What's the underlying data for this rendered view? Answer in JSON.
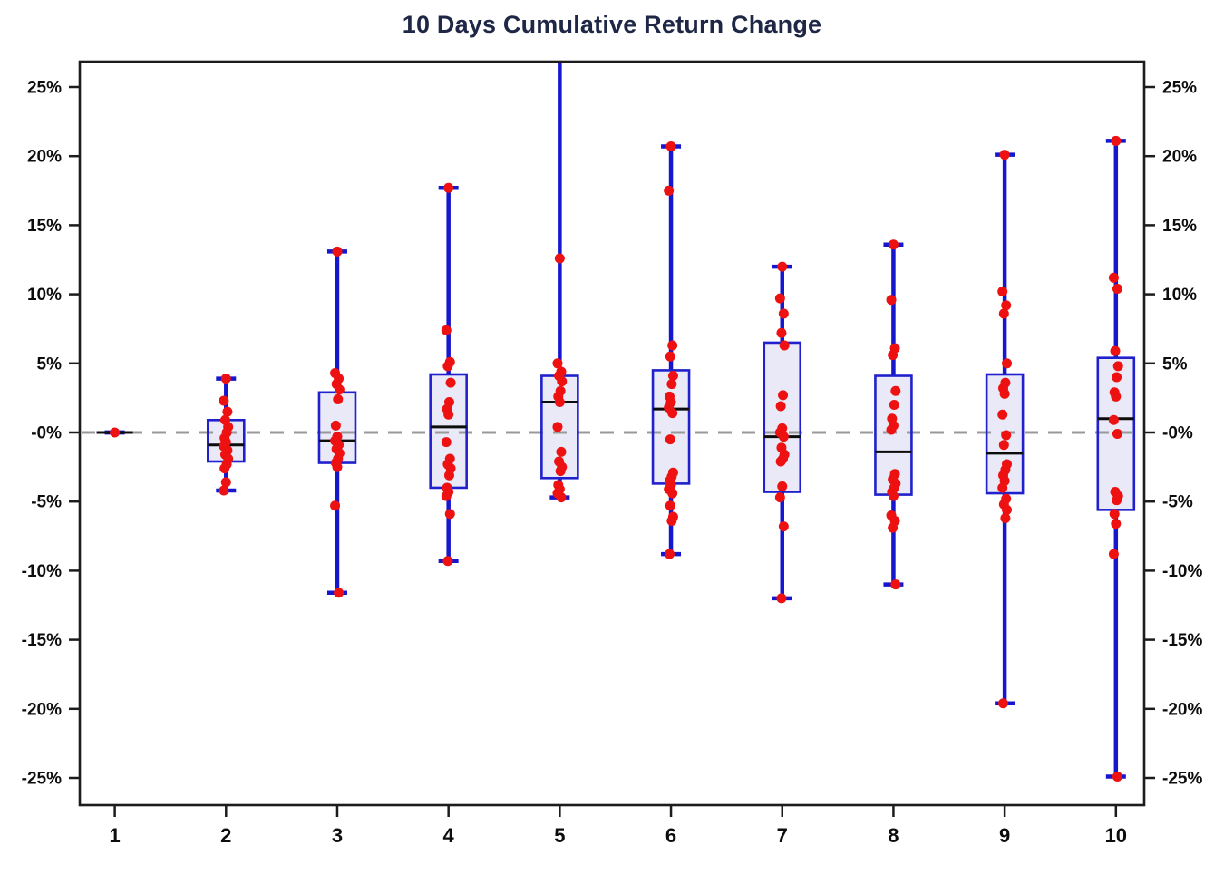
{
  "title": "10 Days Cumulative Return Change",
  "colors": {
    "title_text": "#1f2747",
    "axis": "#1c1c1c",
    "tick_text": "#0d0d0d",
    "box_fill": "#e9e9f8",
    "box_stroke": "#2021cd",
    "whisker": "#1616cf",
    "median": "#0c0c0c",
    "point": "#ee1111",
    "zero_line": "#999999"
  },
  "chart_data": {
    "type": "boxplot-with-points",
    "title": "10 Days Cumulative Return Change",
    "xlabel": "",
    "ylabel": "",
    "categories": [
      "1",
      "2",
      "3",
      "4",
      "5",
      "6",
      "7",
      "8",
      "9",
      "10"
    ],
    "y_tick_labels": [
      "25%",
      "20%",
      "15%",
      "10%",
      "5%",
      "-0%",
      "-5%",
      "-10%",
      "-15%",
      "-20%",
      "-25%"
    ],
    "y_tick_values": [
      25,
      20,
      15,
      10,
      5,
      0,
      -5,
      -10,
      -15,
      -20,
      -25
    ],
    "ylim": [
      -26.8,
      26.8
    ],
    "y_axis_mirrored_right": true,
    "grid": false,
    "zero_reference_line": 0,
    "series": [
      {
        "day": "1",
        "whisker_low": 0.0,
        "q1": 0.0,
        "median": 0.0,
        "q3": 0.0,
        "whisker_high": 0.0,
        "clipped_top": false,
        "points": [
          0.0
        ]
      },
      {
        "day": "2",
        "whisker_low": -4.2,
        "q1": -2.1,
        "median": -0.9,
        "q3": 0.9,
        "whisker_high": 3.9,
        "clipped_top": false,
        "points": [
          3.9,
          2.3,
          1.5,
          0.9,
          0.4,
          0.0,
          -0.4,
          -0.7,
          -1.0,
          -1.3,
          -1.6,
          -1.9,
          -2.3,
          -2.6,
          -3.6,
          -4.2
        ]
      },
      {
        "day": "3",
        "whisker_low": -11.6,
        "q1": -2.2,
        "median": -0.6,
        "q3": 2.9,
        "whisker_high": 13.1,
        "clipped_top": false,
        "points": [
          13.1,
          4.3,
          3.9,
          3.5,
          3.1,
          2.4,
          0.5,
          -0.3,
          -0.6,
          -0.9,
          -1.2,
          -1.5,
          -1.9,
          -2.2,
          -2.5,
          -5.3,
          -11.6
        ]
      },
      {
        "day": "4",
        "whisker_low": -9.3,
        "q1": -4.0,
        "median": 0.4,
        "q3": 4.2,
        "whisker_high": 17.7,
        "clipped_top": false,
        "points": [
          17.7,
          7.4,
          5.1,
          4.8,
          3.6,
          2.2,
          1.7,
          1.3,
          -0.7,
          -1.9,
          -2.3,
          -2.6,
          -3.1,
          -4.0,
          -4.3,
          -4.6,
          -5.9,
          -9.3
        ]
      },
      {
        "day": "5",
        "whisker_low": -4.7,
        "q1": -3.3,
        "median": 2.2,
        "q3": 4.1,
        "whisker_high": 29.0,
        "clipped_top": true,
        "points": [
          12.6,
          5.0,
          4.4,
          4.1,
          3.7,
          3.0,
          2.6,
          2.2,
          0.4,
          -1.4,
          -2.1,
          -2.5,
          -2.8,
          -3.8,
          -4.1,
          -4.4,
          -4.7
        ]
      },
      {
        "day": "6",
        "whisker_low": -8.8,
        "q1": -3.7,
        "median": 1.7,
        "q3": 4.5,
        "whisker_high": 20.7,
        "clipped_top": false,
        "points": [
          20.7,
          17.5,
          6.3,
          5.5,
          4.1,
          3.5,
          2.6,
          2.2,
          1.8,
          1.4,
          -0.5,
          -2.9,
          -3.2,
          -3.5,
          -3.8,
          -4.1,
          -4.4,
          -5.3,
          -6.1,
          -6.4,
          -8.8
        ]
      },
      {
        "day": "7",
        "whisker_low": -12.0,
        "q1": -4.3,
        "median": -0.3,
        "q3": 6.5,
        "whisker_high": 12.0,
        "clipped_top": false,
        "points": [
          12.0,
          9.7,
          8.6,
          7.2,
          6.3,
          2.7,
          1.9,
          0.3,
          0.0,
          -0.3,
          -1.1,
          -1.6,
          -1.9,
          -2.1,
          -3.9,
          -4.7,
          -6.8,
          -12.0
        ]
      },
      {
        "day": "8",
        "whisker_low": -11.0,
        "q1": -4.5,
        "median": -1.4,
        "q3": 4.1,
        "whisker_high": 13.6,
        "clipped_top": false,
        "points": [
          13.6,
          9.6,
          6.1,
          5.6,
          3.0,
          2.0,
          1.0,
          0.5,
          0.2,
          -3.0,
          -3.4,
          -3.7,
          -4.0,
          -4.3,
          -4.6,
          -6.0,
          -6.4,
          -6.9,
          -11.0
        ]
      },
      {
        "day": "9",
        "whisker_low": -19.6,
        "q1": -4.4,
        "median": -1.5,
        "q3": 4.2,
        "whisker_high": 20.1,
        "clipped_top": false,
        "points": [
          20.1,
          10.2,
          9.2,
          8.6,
          5.0,
          3.6,
          3.2,
          2.8,
          1.3,
          -0.2,
          -0.9,
          -2.3,
          -2.7,
          -3.1,
          -3.5,
          -4.0,
          -4.8,
          -5.2,
          -5.6,
          -6.2,
          -19.6
        ]
      },
      {
        "day": "10",
        "whisker_low": -24.9,
        "q1": -5.6,
        "median": 1.0,
        "q3": 5.4,
        "whisker_high": 21.1,
        "clipped_top": false,
        "points": [
          21.1,
          11.2,
          10.4,
          5.9,
          4.8,
          4.0,
          2.9,
          2.6,
          0.9,
          -0.1,
          -4.3,
          -4.6,
          -4.9,
          -5.9,
          -6.6,
          -8.8,
          -24.9
        ]
      }
    ]
  }
}
